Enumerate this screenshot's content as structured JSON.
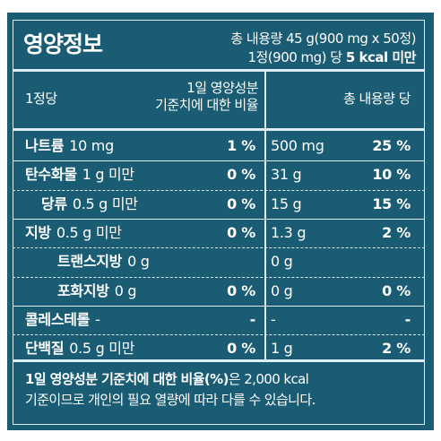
{
  "label": {
    "title": "영양정보",
    "total_serving": "총 내용량 45 g(900 mg x 50정)",
    "per_unit_prefix": "1정(900 mg) 당 ",
    "per_unit_kcal": "5 kcal 미만"
  },
  "table_header": {
    "per_unit": "1정당",
    "daily_value_line1": "1일 영양성분",
    "daily_value_line2": "기준치에 대한 비율",
    "per_total": "총 내용량 당"
  },
  "rows": [
    {
      "name": "나트륨",
      "amount": "10 mg",
      "pct": "1 %",
      "total_amount": "500 mg",
      "total_pct": "25 %"
    },
    {
      "name": "탄수화물",
      "amount": "1 g 미만",
      "pct": "0 %",
      "total_amount": "31 g",
      "total_pct": "10 %"
    },
    {
      "name": "당류",
      "amount": "0.5 g 미만",
      "pct": "0 %",
      "total_amount": "15 g",
      "total_pct": "15 %"
    },
    {
      "name": "지방",
      "amount": "0.5 g 미만",
      "pct": "0 %",
      "total_amount": "1.3 g",
      "total_pct": "2 %"
    },
    {
      "name": "트랜스지방",
      "amount": "0 g",
      "pct": "",
      "total_amount": "0 g",
      "total_pct": ""
    },
    {
      "name": "포화지방",
      "amount": "0 g",
      "pct": "0 %",
      "total_amount": "0 g",
      "total_pct": "0 %"
    },
    {
      "name": "콜레스테롤",
      "amount": "-",
      "pct": "-",
      "total_amount": "-",
      "total_pct": "-"
    },
    {
      "name": "단백질",
      "amount": "0.5 g 미만",
      "pct": "0 %",
      "total_amount": "1 g",
      "total_pct": "2 %"
    }
  ],
  "footnote": {
    "bold_part": "1일 영양성분 기준치에 대한 비율(%)",
    "line1_rest": "은 2,000 kcal",
    "line2": "기준이므로 개인의 필요 열량에 따라 다를 수 있습니다."
  },
  "colors": {
    "panel_background": "#1a5c73",
    "text": "#ffffff",
    "rule": "#dfeef3"
  }
}
